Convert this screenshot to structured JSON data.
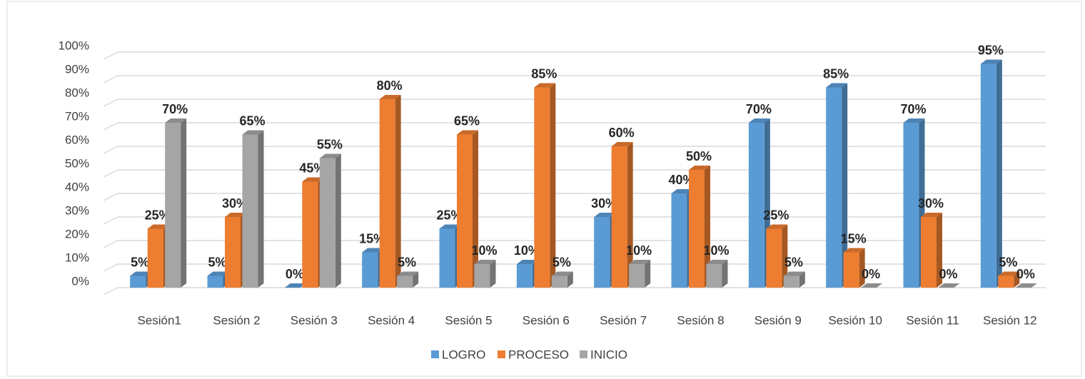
{
  "chart_data": {
    "type": "bar3d",
    "categories": [
      "Sesión1",
      "Sesión 2",
      "Sesión 3",
      "Sesión 4",
      "Sesión 5",
      "Sesión 6",
      "Sesión 7",
      "Sesión 8",
      "Sesión 9",
      "Sesión 10",
      "Sesión 11",
      "Sesión 12"
    ],
    "series": [
      {
        "name": "LOGRO",
        "color": "#5b9bd5",
        "values": [
          5,
          5,
          0,
          15,
          25,
          10,
          30,
          40,
          70,
          85,
          70,
          95
        ],
        "value_labels": [
          "5%",
          "5%",
          "0%",
          "15%",
          "25%",
          "10%",
          "30%",
          "40%",
          "70%",
          "85%",
          "70%",
          "95%"
        ]
      },
      {
        "name": "PROCESO",
        "color": "#ed7d31",
        "values": [
          25,
          30,
          45,
          80,
          65,
          85,
          60,
          50,
          25,
          15,
          30,
          5
        ],
        "value_labels": [
          "25%",
          "30%",
          "45%",
          "80%",
          "65%",
          "85%",
          "60%",
          "50%",
          "25%",
          "15%",
          "30%",
          "5%"
        ]
      },
      {
        "name": "INICIO",
        "color": "#a5a5a5",
        "values": [
          70,
          65,
          55,
          5,
          10,
          5,
          10,
          10,
          5,
          0,
          0,
          0
        ],
        "value_labels": [
          "70%",
          "65%",
          "55%",
          "5%",
          "10%",
          "5%",
          "10%",
          "10%",
          "5%",
          "0%",
          "0%",
          "0%"
        ]
      }
    ],
    "ylim": [
      0,
      100
    ],
    "yticks": [
      {
        "value": 0,
        "label": "0%"
      },
      {
        "value": 10,
        "label": "10%"
      },
      {
        "value": 20,
        "label": "20%"
      },
      {
        "value": 30,
        "label": "30%"
      },
      {
        "value": 40,
        "label": "40%"
      },
      {
        "value": 50,
        "label": "50%"
      },
      {
        "value": 60,
        "label": "60%"
      },
      {
        "value": 70,
        "label": "70%"
      },
      {
        "value": 80,
        "label": "80%"
      },
      {
        "value": 90,
        "label": "90%"
      },
      {
        "value": 100,
        "label": "100%"
      }
    ],
    "grid": true,
    "legend": "bottom"
  }
}
